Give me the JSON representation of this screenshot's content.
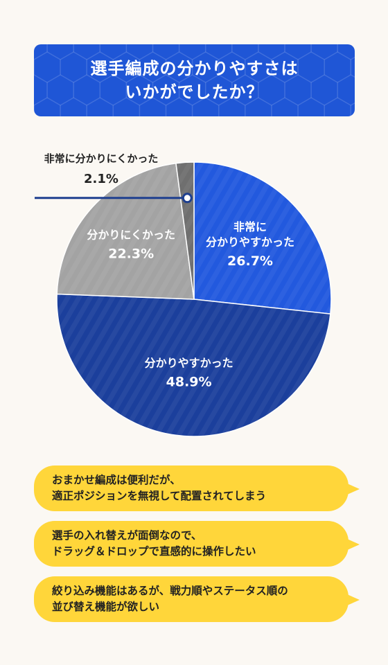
{
  "title": {
    "line1": "選手編成の分かりやすさは",
    "line2": "いかがでしたか？",
    "bg_color": "#1f56d6"
  },
  "chart_data": {
    "type": "pie",
    "slices": [
      {
        "label_lines": [
          "非常に",
          "分かりやすかった"
        ],
        "value": 26.7,
        "value_text": "26.7%",
        "color": "#2259de"
      },
      {
        "label_lines": [
          "分かりやすかった"
        ],
        "value": 48.9,
        "value_text": "48.9%",
        "color": "#1b3f9c"
      },
      {
        "label_lines": [
          "分かりにくかった"
        ],
        "value": 22.3,
        "value_text": "22.3%",
        "color": "#a3a3a3"
      },
      {
        "label_lines": [
          "非常に分かりにくかった"
        ],
        "value": 2.1,
        "value_text": "2.1%",
        "color": "#6f6f6f"
      }
    ],
    "start_angle_deg": 0,
    "direction": "clockwise",
    "callout_slice": 3
  },
  "comments": [
    {
      "lines": [
        "おまかせ編成は便利だが、",
        "適正ポジションを無視して配置されてしまう"
      ]
    },
    {
      "lines": [
        "選手の入れ替えが面倒なので、",
        "ドラッグ＆ドロップで直感的に操作したい"
      ]
    },
    {
      "lines": [
        "絞り込み機能はあるが、戦力順やステータス順の",
        "並び替え機能が欲しい"
      ]
    }
  ],
  "colors": {
    "bubble": "#ffd63a",
    "page_bg": "#fbf8f3",
    "callout_line": "#1e3f8f"
  }
}
